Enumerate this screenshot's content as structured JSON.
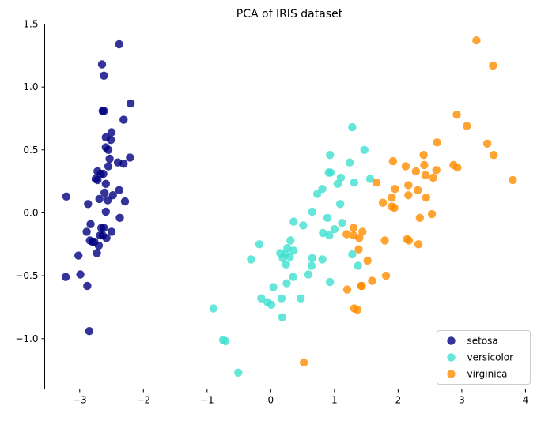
{
  "chart_data": {
    "type": "scatter",
    "title": "PCA of IRIS dataset",
    "xlabel": "",
    "ylabel": "",
    "xlim": [
      -3.55,
      4.15
    ],
    "ylim": [
      -1.4,
      1.5
    ],
    "xticks": [
      -3,
      -2,
      -1,
      0,
      1,
      2,
      3,
      4
    ],
    "xtick_labels": [
      "−3",
      "−2",
      "−1",
      "0",
      "1",
      "2",
      "3",
      "4"
    ],
    "yticks": [
      -1.0,
      -0.5,
      0.0,
      0.5,
      1.0,
      1.5
    ],
    "ytick_labels": [
      "−1.0",
      "−0.5",
      "0.0",
      "0.5",
      "1.0",
      "1.5"
    ],
    "grid": false,
    "legend_position": "lower-right",
    "series": [
      {
        "name": "setosa",
        "color": "#000080",
        "points": [
          [
            -2.38,
            1.34
          ],
          [
            -2.65,
            1.18
          ],
          [
            -2.62,
            1.09
          ],
          [
            -2.2,
            0.87
          ],
          [
            -2.64,
            0.81
          ],
          [
            -2.62,
            0.81
          ],
          [
            -2.31,
            0.74
          ],
          [
            -2.5,
            0.64
          ],
          [
            -2.59,
            0.6
          ],
          [
            -2.51,
            0.58
          ],
          [
            -2.59,
            0.52
          ],
          [
            -2.55,
            0.5
          ],
          [
            -2.53,
            0.43
          ],
          [
            -2.21,
            0.44
          ],
          [
            -2.4,
            0.4
          ],
          [
            -2.31,
            0.39
          ],
          [
            -2.55,
            0.37
          ],
          [
            -2.72,
            0.33
          ],
          [
            -2.63,
            0.31
          ],
          [
            -2.67,
            0.31
          ],
          [
            -2.75,
            0.27
          ],
          [
            -2.72,
            0.26
          ],
          [
            -2.59,
            0.23
          ],
          [
            -2.38,
            0.18
          ],
          [
            -2.61,
            0.16
          ],
          [
            -2.48,
            0.14
          ],
          [
            -3.21,
            0.13
          ],
          [
            -2.69,
            0.11
          ],
          [
            -2.56,
            0.1
          ],
          [
            -2.29,
            0.09
          ],
          [
            -2.87,
            0.07
          ],
          [
            -2.59,
            0.01
          ],
          [
            -2.37,
            -0.04
          ],
          [
            -2.83,
            -0.09
          ],
          [
            -2.66,
            -0.12
          ],
          [
            -2.62,
            -0.12
          ],
          [
            -2.89,
            -0.15
          ],
          [
            -2.5,
            -0.15
          ],
          [
            -2.64,
            -0.18
          ],
          [
            -2.68,
            -0.18
          ],
          [
            -2.58,
            -0.2
          ],
          [
            -2.84,
            -0.22
          ],
          [
            -2.77,
            -0.23
          ],
          [
            -2.8,
            -0.23
          ],
          [
            -2.7,
            -0.26
          ],
          [
            -2.73,
            -0.32
          ],
          [
            -3.02,
            -0.34
          ],
          [
            -2.99,
            -0.49
          ],
          [
            -3.22,
            -0.51
          ],
          [
            -2.88,
            -0.58
          ],
          [
            -2.85,
            -0.94
          ]
        ]
      },
      {
        "name": "versicolor",
        "color": "#40e0d0",
        "points": [
          [
            1.28,
            0.68
          ],
          [
            1.47,
            0.5
          ],
          [
            0.93,
            0.46
          ],
          [
            0.91,
            0.32
          ],
          [
            0.94,
            0.32
          ],
          [
            1.24,
            0.4
          ],
          [
            1.1,
            0.28
          ],
          [
            1.31,
            0.24
          ],
          [
            1.56,
            0.27
          ],
          [
            1.05,
            0.23
          ],
          [
            0.81,
            0.19
          ],
          [
            0.73,
            0.15
          ],
          [
            1.09,
            0.07
          ],
          [
            0.65,
            0.01
          ],
          [
            0.89,
            -0.04
          ],
          [
            0.36,
            -0.07
          ],
          [
            1.12,
            -0.08
          ],
          [
            0.51,
            -0.1
          ],
          [
            1.0,
            -0.13
          ],
          [
            0.82,
            -0.16
          ],
          [
            0.92,
            -0.18
          ],
          [
            -0.18,
            -0.25
          ],
          [
            0.31,
            -0.22
          ],
          [
            0.26,
            -0.28
          ],
          [
            0.36,
            -0.3
          ],
          [
            0.15,
            -0.32
          ],
          [
            0.23,
            -0.33
          ],
          [
            0.3,
            -0.35
          ],
          [
            0.19,
            -0.36
          ],
          [
            -0.31,
            -0.37
          ],
          [
            0.65,
            -0.36
          ],
          [
            0.81,
            -0.37
          ],
          [
            1.28,
            -0.33
          ],
          [
            0.24,
            -0.41
          ],
          [
            0.64,
            -0.42
          ],
          [
            1.37,
            -0.42
          ],
          [
            0.59,
            -0.49
          ],
          [
            0.35,
            -0.51
          ],
          [
            0.93,
            -0.55
          ],
          [
            0.25,
            -0.56
          ],
          [
            0.04,
            -0.59
          ],
          [
            -0.15,
            -0.68
          ],
          [
            0.17,
            -0.68
          ],
          [
            0.47,
            -0.68
          ],
          [
            -0.05,
            -0.71
          ],
          [
            0.01,
            -0.73
          ],
          [
            -0.9,
            -0.76
          ],
          [
            0.18,
            -0.83
          ],
          [
            -0.75,
            -1.01
          ],
          [
            -0.71,
            -1.02
          ],
          [
            -0.51,
            -1.27
          ]
        ]
      },
      {
        "name": "virginica",
        "color": "#ff8c00",
        "points": [
          [
            3.23,
            1.37
          ],
          [
            3.49,
            1.17
          ],
          [
            2.92,
            0.78
          ],
          [
            3.08,
            0.69
          ],
          [
            2.61,
            0.56
          ],
          [
            3.4,
            0.55
          ],
          [
            2.4,
            0.46
          ],
          [
            3.5,
            0.46
          ],
          [
            1.92,
            0.41
          ],
          [
            2.41,
            0.38
          ],
          [
            2.87,
            0.38
          ],
          [
            2.12,
            0.37
          ],
          [
            2.93,
            0.36
          ],
          [
            2.28,
            0.33
          ],
          [
            2.6,
            0.34
          ],
          [
            2.43,
            0.3
          ],
          [
            2.55,
            0.28
          ],
          [
            3.8,
            0.26
          ],
          [
            1.66,
            0.24
          ],
          [
            2.16,
            0.22
          ],
          [
            1.95,
            0.19
          ],
          [
            2.31,
            0.18
          ],
          [
            2.16,
            0.14
          ],
          [
            1.9,
            0.12
          ],
          [
            2.44,
            0.12
          ],
          [
            1.76,
            0.08
          ],
          [
            1.9,
            0.05
          ],
          [
            1.94,
            0.04
          ],
          [
            2.53,
            -0.01
          ],
          [
            2.34,
            -0.04
          ],
          [
            1.3,
            -0.12
          ],
          [
            1.44,
            -0.15
          ],
          [
            1.19,
            -0.17
          ],
          [
            1.3,
            -0.18
          ],
          [
            1.39,
            -0.2
          ],
          [
            1.79,
            -0.22
          ],
          [
            2.14,
            -0.21
          ],
          [
            2.17,
            -0.22
          ],
          [
            2.32,
            -0.25
          ],
          [
            1.38,
            -0.29
          ],
          [
            1.52,
            -0.38
          ],
          [
            1.81,
            -0.5
          ],
          [
            1.59,
            -0.54
          ],
          [
            1.43,
            -0.58
          ],
          [
            1.42,
            -0.58
          ],
          [
            1.2,
            -0.61
          ],
          [
            1.31,
            -0.76
          ],
          [
            1.36,
            -0.77
          ],
          [
            0.52,
            -1.19
          ]
        ]
      }
    ]
  }
}
